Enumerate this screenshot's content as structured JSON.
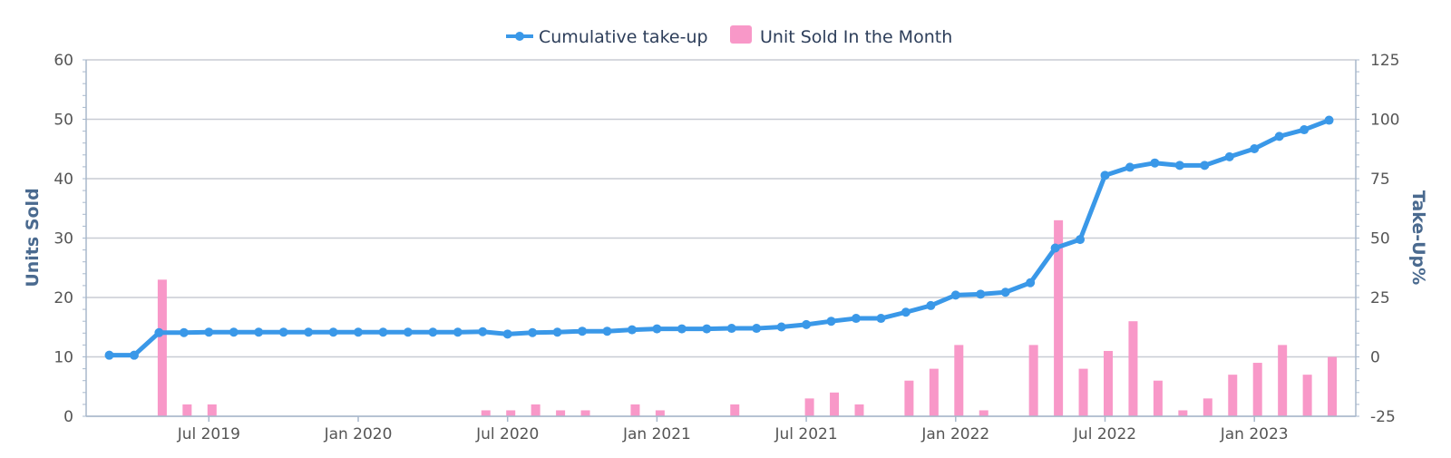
{
  "chart_data": {
    "type": "bar+line",
    "legend": {
      "position": "top-center",
      "items": [
        {
          "label": "Cumulative take-up",
          "color": "#3a98e8",
          "shape": "line-marker"
        },
        {
          "label": "Unit Sold In the Month",
          "color": "#f898c8",
          "shape": "box"
        }
      ]
    },
    "y_left": {
      "title": "Units Sold",
      "min": 0,
      "max": 60,
      "ticks": [
        0,
        10,
        20,
        30,
        40,
        50,
        60
      ]
    },
    "y_right": {
      "title": "Take-Up%",
      "min": -25,
      "max": 125,
      "ticks": [
        "-25",
        "0",
        "25",
        "50",
        "75",
        "100",
        "125"
      ]
    },
    "x_axis": {
      "start": "2019-03",
      "tick_labels": [
        {
          "month": "2019-07",
          "label": "Jul 2019"
        },
        {
          "month": "2020-01",
          "label": "Jan 2020"
        },
        {
          "month": "2020-07",
          "label": "Jul 2020"
        },
        {
          "month": "2021-01",
          "label": "Jan 2021"
        },
        {
          "month": "2021-07",
          "label": "Jul 2021"
        },
        {
          "month": "2022-01",
          "label": "Jan 2022"
        },
        {
          "month": "2022-07",
          "label": "Jul 2022"
        },
        {
          "month": "2023-01",
          "label": "Jan 2023"
        }
      ]
    },
    "grid": true,
    "months": [
      "2019-03",
      "2019-04",
      "2019-05",
      "2019-06",
      "2019-07",
      "2019-08",
      "2019-09",
      "2019-10",
      "2019-11",
      "2019-12",
      "2020-01",
      "2020-02",
      "2020-03",
      "2020-04",
      "2020-05",
      "2020-06",
      "2020-07",
      "2020-08",
      "2020-09",
      "2020-10",
      "2020-11",
      "2020-12",
      "2021-01",
      "2021-02",
      "2021-03",
      "2021-04",
      "2021-05",
      "2021-06",
      "2021-07",
      "2021-08",
      "2021-09",
      "2021-10",
      "2021-11",
      "2021-12",
      "2022-01",
      "2022-02",
      "2022-03",
      "2022-04",
      "2022-05",
      "2022-06",
      "2022-07",
      "2022-08",
      "2022-09",
      "2022-10",
      "2022-11",
      "2022-12",
      "2023-01",
      "2023-02",
      "2023-03",
      "2023-04"
    ],
    "series": [
      {
        "name": "Unit Sold In the Month",
        "type": "bar",
        "axis": "left",
        "values": [
          0,
          0,
          23,
          2,
          2,
          0,
          0,
          0,
          0,
          0,
          0,
          0,
          0,
          0,
          0,
          1,
          1,
          2,
          1,
          1,
          0,
          2,
          1,
          0,
          0,
          2,
          0,
          0,
          3,
          4,
          2,
          0,
          6,
          8,
          12,
          1,
          0,
          12,
          33,
          8,
          11,
          16,
          6,
          1,
          3,
          7,
          9,
          12,
          7,
          10
        ]
      },
      {
        "name": "Cumulative take-up",
        "type": "line",
        "axis": "right",
        "values": [
          0.7,
          0.7,
          10.2,
          10.2,
          10.4,
          10.4,
          10.4,
          10.4,
          10.4,
          10.4,
          10.4,
          10.4,
          10.4,
          10.4,
          10.4,
          10.6,
          9.6,
          10.2,
          10.4,
          10.8,
          10.8,
          11.4,
          11.8,
          11.8,
          11.8,
          12.0,
          12.0,
          12.6,
          13.6,
          15.0,
          16.2,
          16.2,
          18.8,
          21.6,
          26.0,
          26.4,
          27.2,
          31.2,
          45.8,
          49.4,
          76.4,
          79.8,
          81.6,
          80.6,
          80.6,
          84.2,
          87.6,
          92.8,
          95.6,
          99.6
        ]
      }
    ]
  }
}
